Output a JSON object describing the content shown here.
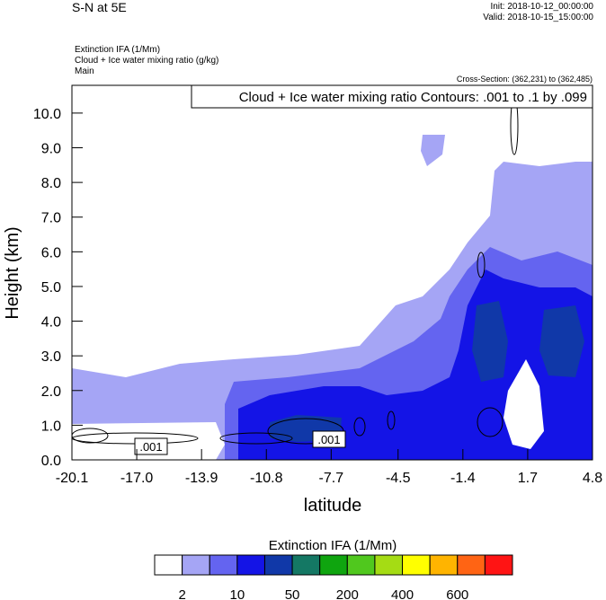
{
  "header": {
    "title": "S-N at 5E",
    "init": "Init: 2018-10-12_00:00:00",
    "valid": "Valid: 2018-10-15_15:00:00"
  },
  "chart_data": {
    "type": "contour",
    "fields": [
      "Extinction IFA   (1/Mm)",
      "Cloud + Ice water mixing ratio   (g/kg)",
      "Main"
    ],
    "cross_section": "Cross-Section: (362,231) to (362,485)",
    "contour_info": "Cloud + Ice water mixing ratio Contours: .001 to .1 by .099",
    "contour_labels": [
      ".001",
      ".001"
    ],
    "x_label": "latitude",
    "y_label": "Height (km)",
    "xlim": [
      -20.1,
      4.8
    ],
    "xticks": [
      -20.1,
      {
        "value": -17,
        "label": "-17.0"
      },
      -13.9,
      -10.8,
      -7.7,
      -4.5,
      -1.4,
      1.7,
      4.8
    ],
    "ylim": [
      0,
      10.8
    ],
    "yticks": [
      {
        "value": 0,
        "label": "0.0"
      },
      {
        "value": 1,
        "label": "1.0"
      },
      {
        "value": 2,
        "label": "2.0"
      },
      {
        "value": 3,
        "label": "3.0"
      },
      {
        "value": 4,
        "label": "4.0"
      },
      {
        "value": 5,
        "label": "5.0"
      },
      {
        "value": 6,
        "label": "6.0"
      },
      {
        "value": 7,
        "label": "7.0"
      },
      {
        "value": 8,
        "label": "8.0"
      },
      {
        "value": 9,
        "label": "9.0"
      },
      {
        "value": 10,
        "label": "10.0"
      }
    ],
    "colorbar": {
      "title": "Extinction IFA  (1/Mm)",
      "colors": [
        "#ffffff",
        "#a5a5f5",
        "#6464f0",
        "#1414e6",
        "#1038a8",
        "#147864",
        "#0fa50f",
        "#50c81e",
        "#a5dc14",
        "#ffff00",
        "#ffb400",
        "#ff6414",
        "#ff1414"
      ],
      "labels": [
        2,
        10,
        50,
        200,
        400,
        600
      ]
    }
  }
}
